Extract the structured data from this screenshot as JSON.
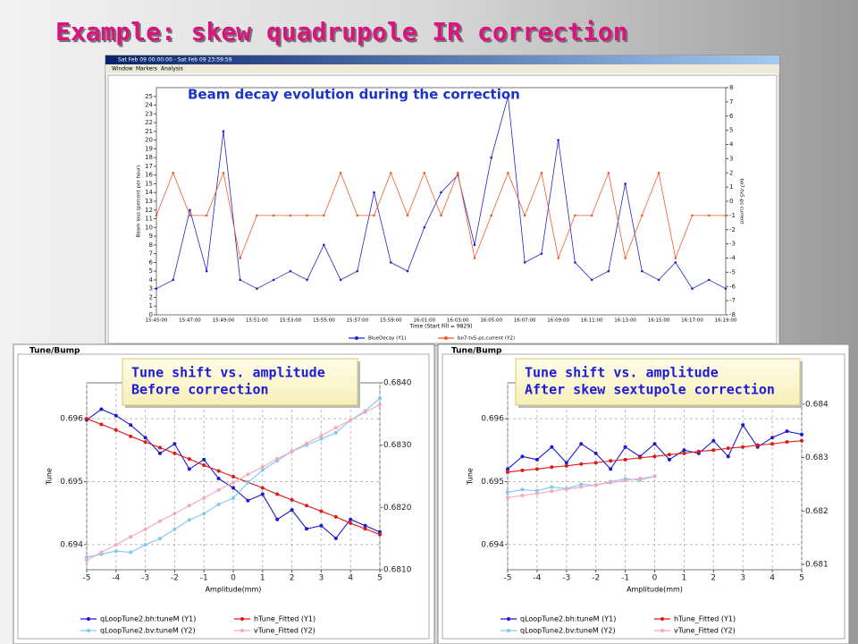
{
  "title": "Example: skew quadrupole IR correction",
  "window_title": "Sat Feb 09 00:00:00 - Sat Feb 09 23:59:59",
  "menu": [
    "Window",
    "Markers",
    "Analysis"
  ],
  "chart_data": [
    {
      "type": "line",
      "annotation": [
        "Beam decay evolution during the correction"
      ],
      "x_label": "Time (Start Fill = 9829)",
      "y_label": "Beam loss (percent per hour)",
      "y2_label": "bo7-tv5-ps current",
      "categories": [
        "15:45:00",
        null,
        "15:47:00",
        null,
        "15:49:00",
        null,
        "15:51:00",
        null,
        "15:53:00",
        null,
        "15:55:00",
        null,
        "15:57:00",
        null,
        "15:59:00",
        null,
        "16:01:00",
        null,
        "16:03:00",
        null,
        "16:05:00",
        null,
        "16:07:00",
        null,
        "16:09:00",
        null,
        "16:11:00",
        null,
        "16:13:00",
        null,
        "16:15:00",
        null,
        "16:17:00",
        null,
        "16:19:00"
      ],
      "ylim": [
        0,
        26
      ],
      "yticks": [
        0,
        1,
        2,
        3,
        4,
        5,
        6,
        7,
        8,
        9,
        10,
        11,
        12,
        13,
        14,
        15,
        16,
        17,
        18,
        19,
        20,
        21,
        22,
        23,
        24,
        25
      ],
      "y2lim": [
        -8,
        8
      ],
      "y2ticks": [
        -8,
        -7,
        -6,
        -5,
        -4,
        -3,
        -2,
        -1,
        0,
        1,
        2,
        3,
        4,
        5,
        6,
        7,
        8
      ],
      "grid": false,
      "series": [
        {
          "name": "BlueDecay (Y1)",
          "color": "#2323c8",
          "values": [
            3,
            4,
            12,
            5,
            21,
            4,
            3,
            4,
            5,
            4,
            8,
            4,
            5,
            14,
            6,
            5,
            10,
            14,
            16,
            8,
            18,
            25,
            6,
            7,
            20,
            6,
            4,
            5,
            15,
            5,
            4,
            6,
            3,
            4,
            3
          ]
        },
        {
          "name": "bo7-tv5-ps.current (Y2)",
          "color": "#f05a28",
          "axis": "y2",
          "values": [
            -1,
            2,
            -1,
            -1,
            2,
            -4,
            -1,
            -1,
            -1,
            -1,
            -1,
            2,
            -1,
            -1,
            2,
            -1,
            2,
            -1,
            2,
            -4,
            -1,
            2,
            -1,
            2,
            -4,
            -1,
            -1,
            2,
            -4,
            -1,
            2,
            -4,
            -1,
            -1,
            -1
          ]
        }
      ]
    },
    {
      "type": "line",
      "panel": "Tune/Bump",
      "annotation": [
        "Tune shift vs. amplitude",
        "Before correction"
      ],
      "x_label": "Amplitude(mm)",
      "y_label": "Tune",
      "x": [
        -5,
        -4.5,
        -4,
        -3.5,
        -3,
        -2.5,
        -2,
        -1.5,
        -1,
        -0.5,
        0,
        0.5,
        1,
        1.5,
        2,
        2.5,
        3,
        3.5,
        4,
        4.5,
        5
      ],
      "xlim": [
        -5,
        5
      ],
      "xticks": [
        -5,
        -4,
        -3,
        -2,
        -1,
        0,
        1,
        2,
        3,
        4,
        5
      ],
      "ylim": [
        0.6936,
        0.69657
      ],
      "yticks": [
        0.694,
        0.695,
        0.696
      ],
      "y2lim": [
        0.681,
        0.684
      ],
      "y2ticks": [
        {
          "value": 0.681,
          "label": "0.6810"
        },
        {
          "value": 0.682,
          "label": "0.6820"
        },
        {
          "value": 0.683,
          "label": "0.6830"
        },
        {
          "value": 0.684,
          "label": "0.6840"
        }
      ],
      "grid": true,
      "series": [
        {
          "name": "qLoopTune2.bh:tuneM (Y1)",
          "color": "#1a1ad0",
          "values": [
            0.69598,
            0.69615,
            0.69605,
            0.6959,
            0.6957,
            0.69545,
            0.6956,
            0.6952,
            0.69535,
            0.69505,
            0.6949,
            0.6947,
            0.6948,
            0.6944,
            0.69455,
            0.69425,
            0.6943,
            0.6941,
            0.6944,
            0.6943,
            0.6942
          ]
        },
        {
          "name": "hTune_Fitted (Y1)",
          "color": "#e01818",
          "values": [
            0.696,
            0.69591,
            0.69582,
            0.69572,
            0.69563,
            0.69554,
            0.69545,
            0.69536,
            0.69526,
            0.69517,
            0.69508,
            0.69499,
            0.6949,
            0.6948,
            0.69471,
            0.69462,
            0.69453,
            0.69444,
            0.69434,
            0.69425,
            0.69416
          ]
        },
        {
          "name": "qLoopTune2.bv:tuneM (Y2)",
          "color": "#7fc8f0",
          "axis": "y2",
          "values": [
            0.6812,
            0.68125,
            0.6813,
            0.68128,
            0.6814,
            0.6815,
            0.68165,
            0.6818,
            0.6819,
            0.68205,
            0.68215,
            0.6824,
            0.6826,
            0.68275,
            0.6829,
            0.683,
            0.6831,
            0.6832,
            0.6834,
            0.68355,
            0.68375
          ]
        },
        {
          "name": "vTune_Fitted (Y2)",
          "color": "#f4a8bc",
          "axis": "y2",
          "values": [
            0.68115,
            0.68128,
            0.6814,
            0.68153,
            0.68165,
            0.68178,
            0.6819,
            0.68203,
            0.68215,
            0.68228,
            0.6824,
            0.68253,
            0.68265,
            0.68278,
            0.6829,
            0.68303,
            0.68315,
            0.68328,
            0.6834,
            0.68353,
            0.68365
          ]
        }
      ]
    },
    {
      "type": "line",
      "panel": "Tune/Bump",
      "annotation": [
        "Tune shift vs. amplitude",
        "After skew sextupole correction"
      ],
      "x_label": "Amplitude(mm)",
      "y_label": "Tune",
      "x": [
        -5,
        -4.5,
        -4,
        -3.5,
        -3,
        -2.5,
        -2,
        -1.5,
        -1,
        -0.5,
        0,
        0.5,
        1,
        1.5,
        2,
        2.5,
        3,
        3.5,
        4,
        4.5,
        5
      ],
      "xlim": [
        -5,
        5
      ],
      "xticks": [
        -5,
        -4,
        -3,
        -2,
        -1,
        0,
        1,
        2,
        3,
        4,
        5
      ],
      "ylim": [
        0.6936,
        0.69657
      ],
      "yticks": [
        0.694,
        0.695,
        0.696
      ],
      "y2lim": [
        0.6809,
        0.6844
      ],
      "y2ticks": [
        0.681,
        0.682,
        0.683,
        0.684
      ],
      "grid": true,
      "series": [
        {
          "name": "qLoopTune2.bh:tuneM (Y1)",
          "color": "#1a1ad0",
          "values": [
            0.6952,
            0.6954,
            0.69535,
            0.69555,
            0.6953,
            0.6956,
            0.69545,
            0.6952,
            0.69555,
            0.6954,
            0.6956,
            0.69535,
            0.6955,
            0.69545,
            0.69565,
            0.6954,
            0.6959,
            0.69555,
            0.6957,
            0.6958,
            0.69575
          ]
        },
        {
          "name": "hTune_Fitted (Y1)",
          "color": "#e01818",
          "values": [
            0.69515,
            0.69518,
            0.6952,
            0.69523,
            0.69525,
            0.69528,
            0.6953,
            0.69533,
            0.69535,
            0.69538,
            0.6954,
            0.69543,
            0.69545,
            0.69548,
            0.6955,
            0.69553,
            0.69555,
            0.69558,
            0.6956,
            0.69563,
            0.69565
          ]
        },
        {
          "name": "qLoopTune2.bv:tuneM (Y2)",
          "color": "#7fc8f0",
          "axis": "y2",
          "values": [
            0.68235,
            0.6824,
            0.68238,
            0.68245,
            0.68242,
            0.6825,
            0.68248,
            0.68255,
            0.6826,
            0.68258,
            0.68265,
            null,
            null,
            null,
            null,
            null,
            null,
            null,
            null,
            null,
            null
          ]
        },
        {
          "name": "vTune_Fitted (Y2)",
          "color": "#f4a8bc",
          "axis": "y2",
          "values": [
            0.68225,
            0.68229,
            0.68233,
            0.68237,
            0.68241,
            0.68245,
            0.68249,
            0.68253,
            0.68257,
            0.68261,
            0.68265,
            null,
            null,
            null,
            null,
            null,
            null,
            null,
            null,
            null,
            null
          ]
        }
      ]
    }
  ]
}
